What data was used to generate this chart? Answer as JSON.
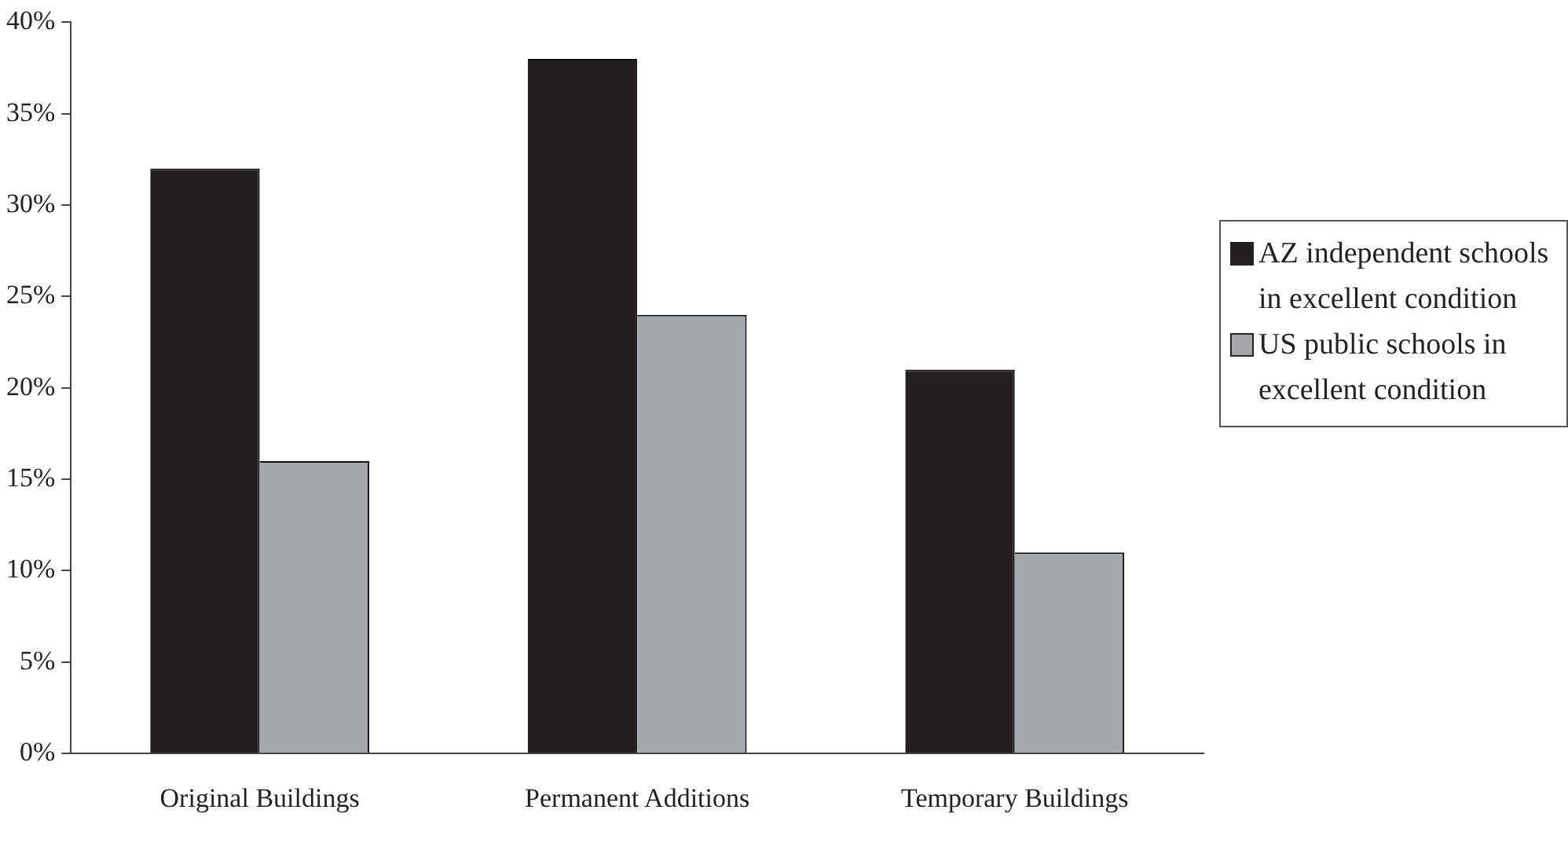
{
  "chart_data": {
    "type": "bar",
    "categories": [
      "Original Buildings",
      "Permanent Additions",
      "Temporary Buildings"
    ],
    "series": [
      {
        "name": "AZ independent schools in excellent condition",
        "color": "#231f20",
        "values": [
          32,
          38,
          21
        ]
      },
      {
        "name": "US public schools in excellent condition",
        "color": "#a6a7ab",
        "values": [
          16,
          24,
          11
        ]
      }
    ],
    "ylim": [
      0,
      40
    ],
    "yticks": [
      {
        "value": 0,
        "label": "0%"
      },
      {
        "value": 5,
        "label": "5%"
      },
      {
        "value": 10,
        "label": "10%"
      },
      {
        "value": 15,
        "label": "15%"
      },
      {
        "value": 20,
        "label": "20%"
      },
      {
        "value": 25,
        "label": "25%"
      },
      {
        "value": 30,
        "label": "30%"
      },
      {
        "value": 35,
        "label": "35%"
      },
      {
        "value": 40,
        "label": "40%"
      }
    ],
    "grid": false,
    "legend": "right"
  }
}
